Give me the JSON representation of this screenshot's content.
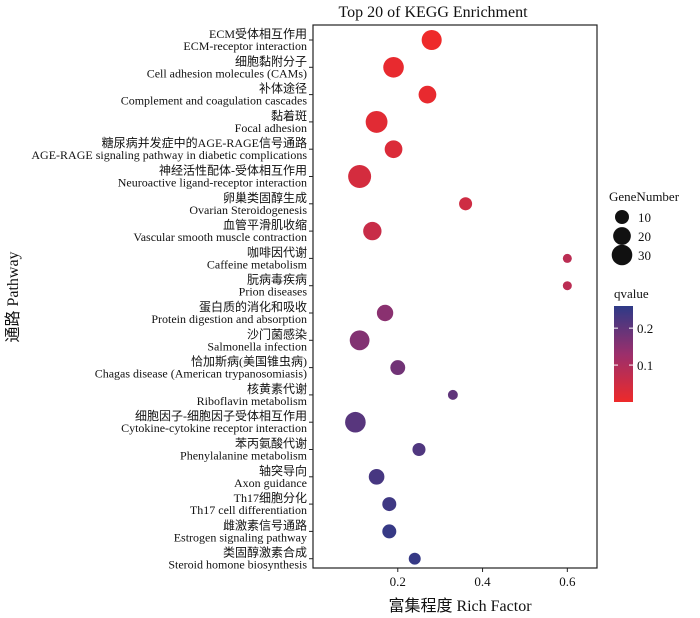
{
  "chart_data": {
    "type": "scatter",
    "title": "Top 20 of KEGG Enrichment",
    "xlabel": "富集程度 Rich Factor",
    "ylabel": "通路 Pathway",
    "xlim": [
      0.0,
      0.67
    ],
    "xticks": [
      "0.2",
      "0.4",
      "0.6"
    ],
    "xtick_values": [
      0.2,
      0.4,
      0.6
    ],
    "size_legend": {
      "title": "GeneNumber",
      "values": [
        10,
        20,
        30
      ],
      "labels": [
        "10",
        "20",
        "30"
      ]
    },
    "color_legend": {
      "title": "qvalue",
      "ticks": [
        "0.2",
        "0.1"
      ],
      "tick_values": [
        0.2,
        0.1
      ],
      "range": [
        0.0,
        0.26
      ],
      "low_color": "#ee2a2a",
      "high_color": "#2e3a87"
    },
    "grid": false,
    "legend_position": "right",
    "points": [
      {
        "cn": "ECM受体相互作用",
        "en": "ECM-receptor interaction",
        "x": 0.28,
        "gene": 28,
        "q": 0.0
      },
      {
        "cn": "细胞黏附分子",
        "en": "Cell adhesion molecules (CAMs)",
        "x": 0.19,
        "gene": 30,
        "q": 0.01
      },
      {
        "cn": "补体途径",
        "en": "Complement and coagulation cascades",
        "x": 0.27,
        "gene": 20,
        "q": 0.01
      },
      {
        "cn": "黏着斑",
        "en": "Focal adhesion",
        "x": 0.15,
        "gene": 35,
        "q": 0.02
      },
      {
        "cn": "糖尿病并发症中的AGE-RAGE信号通路",
        "en": "AGE-RAGE signaling pathway in diabetic complications",
        "x": 0.19,
        "gene": 20,
        "q": 0.03
      },
      {
        "cn": "神经活性配体-受体相互作用",
        "en": "Neuroactive ligand-receptor interaction",
        "x": 0.11,
        "gene": 40,
        "q": 0.04
      },
      {
        "cn": "卵巢类固醇生成",
        "en": "Ovarian Steroidogenesis",
        "x": 0.36,
        "gene": 8,
        "q": 0.05
      },
      {
        "cn": "血管平滑肌收缩",
        "en": "Vascular smooth muscle contraction",
        "x": 0.14,
        "gene": 22,
        "q": 0.06
      },
      {
        "cn": "咖啡因代谢",
        "en": "Caffeine metabolism",
        "x": 0.6,
        "gene": 2,
        "q": 0.08
      },
      {
        "cn": "朊病毒疾病",
        "en": "Prion diseases",
        "x": 0.6,
        "gene": 2,
        "q": 0.08
      },
      {
        "cn": "蛋白质的消化和吸收",
        "en": "Protein digestion and absorption",
        "x": 0.17,
        "gene": 16,
        "q": 0.15
      },
      {
        "cn": "沙门菌感染",
        "en": "Salmonella infection",
        "x": 0.11,
        "gene": 27,
        "q": 0.16
      },
      {
        "cn": "恰加斯病(美国锥虫病)",
        "en": "Chagas disease (American trypanosomiasis)",
        "x": 0.2,
        "gene": 12,
        "q": 0.18
      },
      {
        "cn": "核黄素代谢",
        "en": "Riboflavin metabolism",
        "x": 0.33,
        "gene": 3,
        "q": 0.2
      },
      {
        "cn": "细胞因子-细胞因子受体相互作用",
        "en": "Cytokine-cytokine receptor interaction",
        "x": 0.1,
        "gene": 30,
        "q": 0.21
      },
      {
        "cn": "苯丙氨酸代谢",
        "en": "Phenylalanine metabolism",
        "x": 0.25,
        "gene": 8,
        "q": 0.22
      },
      {
        "cn": "轴突导向",
        "en": "Axon guidance",
        "x": 0.15,
        "gene": 14,
        "q": 0.23
      },
      {
        "cn": "Th17细胞分化",
        "en": "Th17 cell differentiation",
        "x": 0.18,
        "gene": 10,
        "q": 0.24
      },
      {
        "cn": "雌激素信号通路",
        "en": "Estrogen signaling pathway",
        "x": 0.18,
        "gene": 10,
        "q": 0.25
      },
      {
        "cn": "类固醇激素合成",
        "en": "Steroid homone biosynthesis",
        "x": 0.24,
        "gene": 6,
        "q": 0.25
      }
    ]
  }
}
